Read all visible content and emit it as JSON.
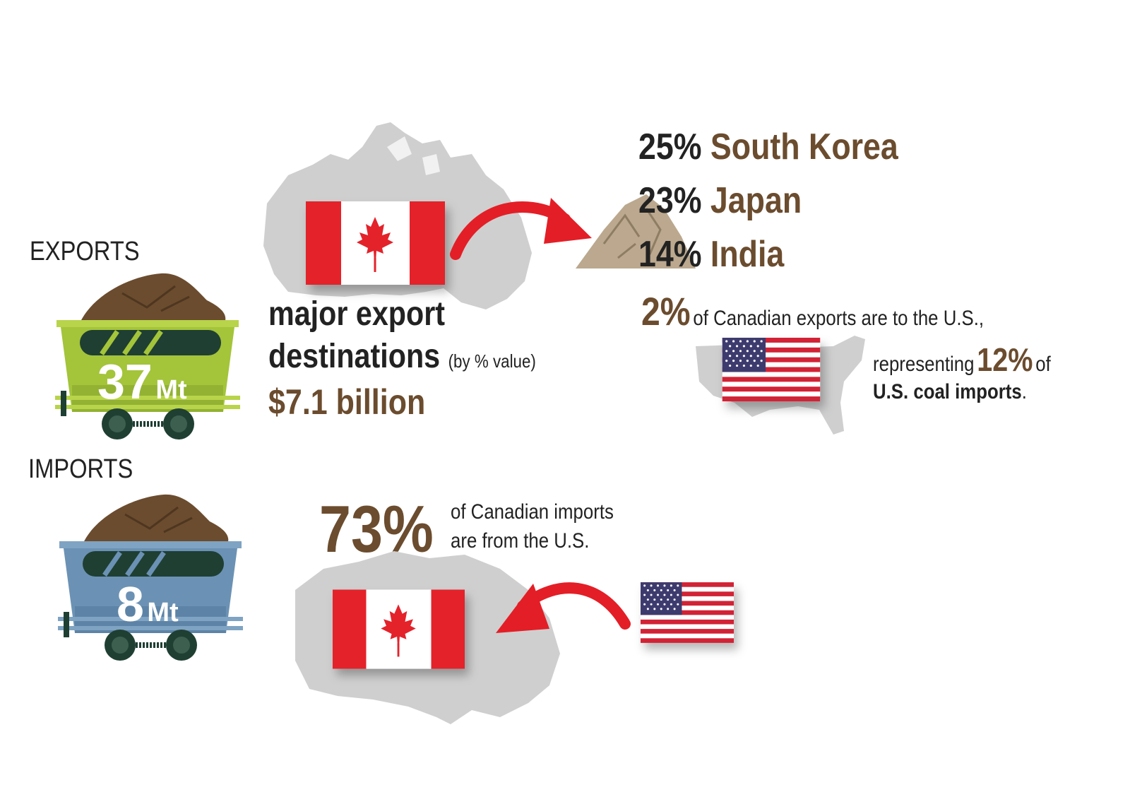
{
  "exports": {
    "label": "EXPORTS",
    "tonnage_value": "37",
    "tonnage_unit": "Mt",
    "headline_line1": "major export",
    "headline_line2": "destinations",
    "headline_note": "(by % value)",
    "value_total": "$7.1 billion",
    "destinations": [
      {
        "pct": "25%",
        "country": "South Korea"
      },
      {
        "pct": "23%",
        "country": "Japan"
      },
      {
        "pct": "14%",
        "country": "India"
      }
    ],
    "us_pct": "2%",
    "us_text": "of Canadian exports are to the U.S.,",
    "us_rep_prefix": "representing",
    "us_rep_pct": "12%",
    "us_rep_of": "of",
    "us_rep_bold": "U.S. coal imports",
    "us_rep_end": "."
  },
  "imports": {
    "label": "IMPORTS",
    "tonnage_value": "8",
    "tonnage_unit": "Mt",
    "us_pct": "73%",
    "us_text_line1": "of Canadian imports",
    "us_text_line2": "are from the U.S."
  },
  "colors": {
    "export_cart": "#a4c43a",
    "import_cart": "#6b92b4",
    "coal": "#6b4c2e",
    "arrow": "#e41e26",
    "map_gray": "#cfcfcf",
    "canada_red": "#e4202a",
    "us_blue": "#3c3b6e"
  }
}
